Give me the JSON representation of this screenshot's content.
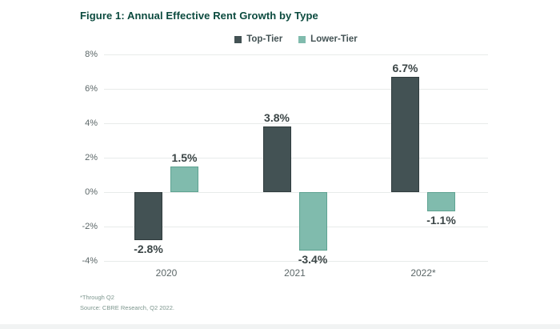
{
  "figure": {
    "title": "Figure 1: Annual Effective Rent Growth by Type",
    "footnotes": [
      "*Through Q2",
      "Source: CBRE Research, Q2 2022."
    ]
  },
  "chart_data": {
    "type": "bar",
    "title": "Figure 1: Annual Effective Rent Growth by Type",
    "categories": [
      "2020",
      "2021",
      "2022*"
    ],
    "series": [
      {
        "name": "Top-Tier",
        "color": "#435254",
        "border_color": "#303c3e",
        "values": [
          -2.8,
          3.8,
          6.7
        ],
        "labels": [
          "-2.8%",
          "3.8%",
          "6.7%"
        ]
      },
      {
        "name": "Lower-Tier",
        "color": "#80bbad",
        "border_color": "#5fa392",
        "values": [
          1.5,
          -3.4,
          -1.1
        ],
        "labels": [
          "1.5%",
          "-3.4%",
          "-1.1%"
        ]
      }
    ],
    "ylim": [
      -4,
      8
    ],
    "ytick_step": 2,
    "ytick_suffix": "%",
    "grid": true,
    "legend_position": "top-center",
    "xlabel": "",
    "ylabel": ""
  },
  "colors": {
    "title_text": "#0b4a3e",
    "grid_line": "#e8ebea",
    "axis_text": "#5c6768",
    "category_text": "#5c6768",
    "value_text": "#3b4546",
    "legend_text": "#435254",
    "footnote_text": "#7d968e",
    "background": "#ffffff"
  }
}
